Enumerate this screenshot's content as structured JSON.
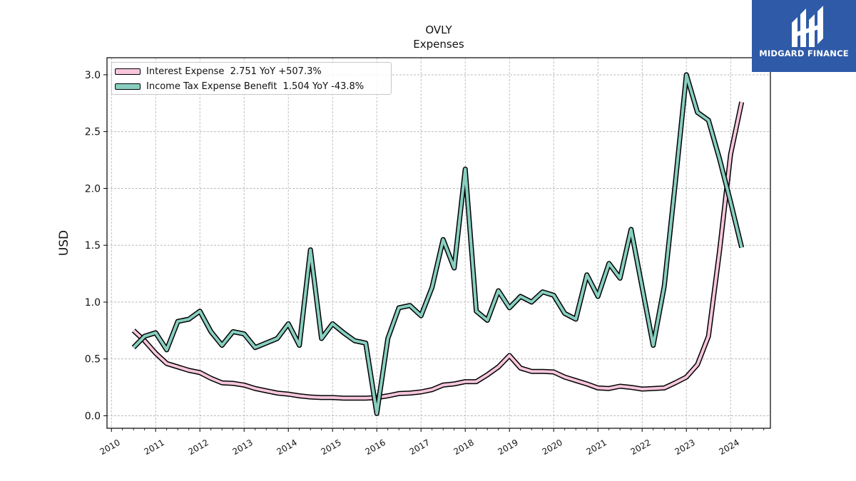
{
  "brand": {
    "name": "MIDGARD FINANCE",
    "bg_color": "#2f5aa8",
    "icon": "midgard-logo-icon"
  },
  "chart_data": {
    "type": "line",
    "title": "OVLY",
    "subtitle": "Expenses",
    "xlabel": "",
    "ylabel": "USD",
    "xlim": [
      2009.9,
      2024.9
    ],
    "ylim": [
      -0.11,
      3.15
    ],
    "x_ticks": [
      2010,
      2011,
      2012,
      2013,
      2014,
      2015,
      2016,
      2017,
      2018,
      2019,
      2020,
      2021,
      2022,
      2023,
      2024
    ],
    "y_ticks": [
      0.0,
      0.5,
      1.0,
      1.5,
      2.0,
      2.5,
      3.0
    ],
    "y_tick_labels": [
      "0.0",
      "0.5",
      "1.0",
      "1.5",
      "2.0",
      "2.5",
      "3.0"
    ],
    "grid": true,
    "legend_position": "top-left",
    "x": [
      2010.5,
      2010.75,
      2011.0,
      2011.25,
      2011.5,
      2011.75,
      2012.0,
      2012.25,
      2012.5,
      2012.75,
      2013.0,
      2013.25,
      2013.5,
      2013.75,
      2014.0,
      2014.25,
      2014.5,
      2014.75,
      2015.0,
      2015.25,
      2015.5,
      2015.75,
      2016.0,
      2016.25,
      2016.5,
      2016.75,
      2017.0,
      2017.25,
      2017.5,
      2017.75,
      2018.0,
      2018.25,
      2018.5,
      2018.75,
      2019.0,
      2019.25,
      2019.5,
      2019.75,
      2020.0,
      2020.25,
      2020.5,
      2020.75,
      2021.0,
      2021.25,
      2021.5,
      2021.75,
      2022.0,
      2022.25,
      2022.5,
      2022.75,
      2023.0,
      2023.25,
      2023.5,
      2023.75,
      2024.0,
      2024.25
    ],
    "series": [
      {
        "name": "Interest Expense  2.751 YoY +507.3%",
        "color": "#f7c6dc",
        "values": [
          0.75,
          0.66,
          0.55,
          0.46,
          0.43,
          0.4,
          0.38,
          0.33,
          0.29,
          0.285,
          0.27,
          0.24,
          0.22,
          0.2,
          0.19,
          0.175,
          0.165,
          0.16,
          0.16,
          0.155,
          0.155,
          0.155,
          0.16,
          0.175,
          0.195,
          0.2,
          0.21,
          0.23,
          0.27,
          0.28,
          0.3,
          0.3,
          0.36,
          0.43,
          0.53,
          0.42,
          0.39,
          0.39,
          0.385,
          0.34,
          0.31,
          0.28,
          0.245,
          0.24,
          0.26,
          0.25,
          0.235,
          0.24,
          0.245,
          0.29,
          0.34,
          0.45,
          0.7,
          1.45,
          2.3,
          2.76
        ]
      },
      {
        "name": "Income Tax Expense Benefit  1.504 YoY -43.8%",
        "color": "#88cfc0",
        "values": [
          0.6,
          0.7,
          0.73,
          0.58,
          0.83,
          0.85,
          0.92,
          0.74,
          0.62,
          0.74,
          0.72,
          0.6,
          0.64,
          0.68,
          0.81,
          0.62,
          1.46,
          0.68,
          0.81,
          0.73,
          0.66,
          0.64,
          0.02,
          0.68,
          0.95,
          0.97,
          0.88,
          1.13,
          1.55,
          1.3,
          2.17,
          0.92,
          0.84,
          1.1,
          0.95,
          1.05,
          1.0,
          1.09,
          1.06,
          0.9,
          0.85,
          1.24,
          1.05,
          1.34,
          1.21,
          1.64,
          1.13,
          0.62,
          1.14,
          2.05,
          3.0,
          2.67,
          2.6,
          2.26,
          1.88,
          1.48
        ]
      }
    ]
  }
}
